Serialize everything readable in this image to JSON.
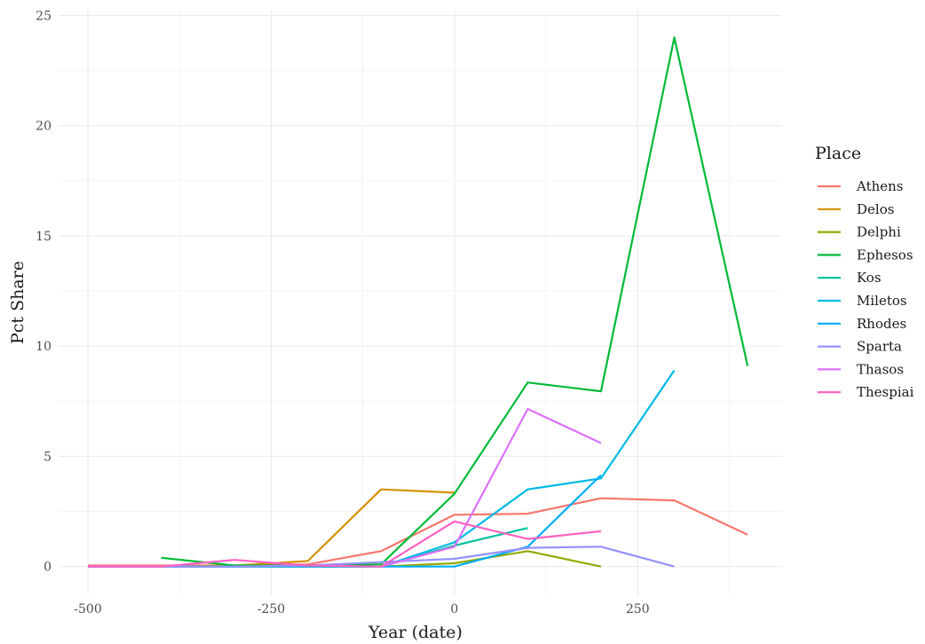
{
  "chart_data": {
    "type": "line",
    "xlabel": "Year (date)",
    "ylabel": "Pct Share",
    "xlim": [
      -540,
      447
    ],
    "ylim": [
      -1.3,
      25.3
    ],
    "x_ticks": [
      -500,
      -250,
      0,
      250
    ],
    "x_tick_labels": [
      "-500",
      "-250",
      "0",
      "250"
    ],
    "y_ticks": [
      0,
      5,
      10,
      15,
      20,
      25
    ],
    "y_tick_labels": [
      "0",
      "5",
      "10",
      "15",
      "20",
      "25"
    ],
    "grid": true,
    "legend": {
      "title": "Place",
      "position": "right"
    },
    "series": [
      {
        "name": "Athens",
        "color": "#F8766D",
        "x": [
          -500,
          -400,
          -300,
          -200,
          -100,
          0,
          100,
          200,
          300,
          400
        ],
        "y": [
          0.05,
          0.05,
          0.05,
          0.1,
          0.7,
          2.35,
          2.4,
          3.1,
          3.0,
          1.45
        ]
      },
      {
        "name": "Delos",
        "color": "#D39200",
        "x": [
          -500,
          -400,
          -300,
          -200,
          -100,
          0
        ],
        "y": [
          0.0,
          0.0,
          0.05,
          0.25,
          3.5,
          3.35
        ]
      },
      {
        "name": "Delphi",
        "color": "#93AA00",
        "x": [
          -500,
          -400,
          -300,
          -200,
          -100,
          0,
          100,
          200
        ],
        "y": [
          0.0,
          0.0,
          0.0,
          0.0,
          0.0,
          0.15,
          0.7,
          0.0
        ]
      },
      {
        "name": "Ephesos",
        "color": "#00BA38",
        "x": [
          -400,
          -300,
          -200,
          -100,
          0,
          100,
          200,
          300,
          400
        ],
        "y": [
          0.4,
          0.05,
          0.05,
          0.1,
          3.3,
          8.35,
          7.95,
          24.0,
          9.1
        ]
      },
      {
        "name": "Kos",
        "color": "#00C19F",
        "x": [
          -500,
          -400,
          -300,
          -200,
          -100,
          0,
          100
        ],
        "y": [
          0.0,
          0.0,
          0.0,
          0.0,
          0.0,
          0.95,
          1.75
        ]
      },
      {
        "name": "Miletos",
        "color": "#00B9E3",
        "x": [
          -100,
          0,
          100,
          200,
          300
        ],
        "y": [
          0.0,
          1.1,
          3.5,
          4.0,
          8.9
        ]
      },
      {
        "name": "Rhodes",
        "color": "#00ADFA",
        "x": [
          -500,
          -400,
          -300,
          -200,
          -100,
          0,
          100,
          200
        ],
        "y": [
          0.0,
          0.0,
          0.0,
          0.0,
          0.0,
          0.0,
          0.9,
          4.15
        ]
      },
      {
        "name": "Sparta",
        "color": "#9590FF",
        "x": [
          -500,
          -400,
          -300,
          -200,
          -100,
          0,
          100,
          200,
          300
        ],
        "y": [
          0.0,
          0.0,
          0.0,
          0.05,
          0.2,
          0.35,
          0.85,
          0.9,
          0.0
        ]
      },
      {
        "name": "Thasos",
        "color": "#DB72FB",
        "x": [
          -100,
          0,
          100,
          200
        ],
        "y": [
          0.0,
          0.9,
          7.15,
          5.6
        ]
      },
      {
        "name": "Thespiai",
        "color": "#FF61C3",
        "x": [
          -500,
          -400,
          -300,
          -200,
          -100,
          0,
          100,
          200
        ],
        "y": [
          0.0,
          0.0,
          0.3,
          0.05,
          0.0,
          2.05,
          1.25,
          1.6
        ]
      }
    ]
  }
}
